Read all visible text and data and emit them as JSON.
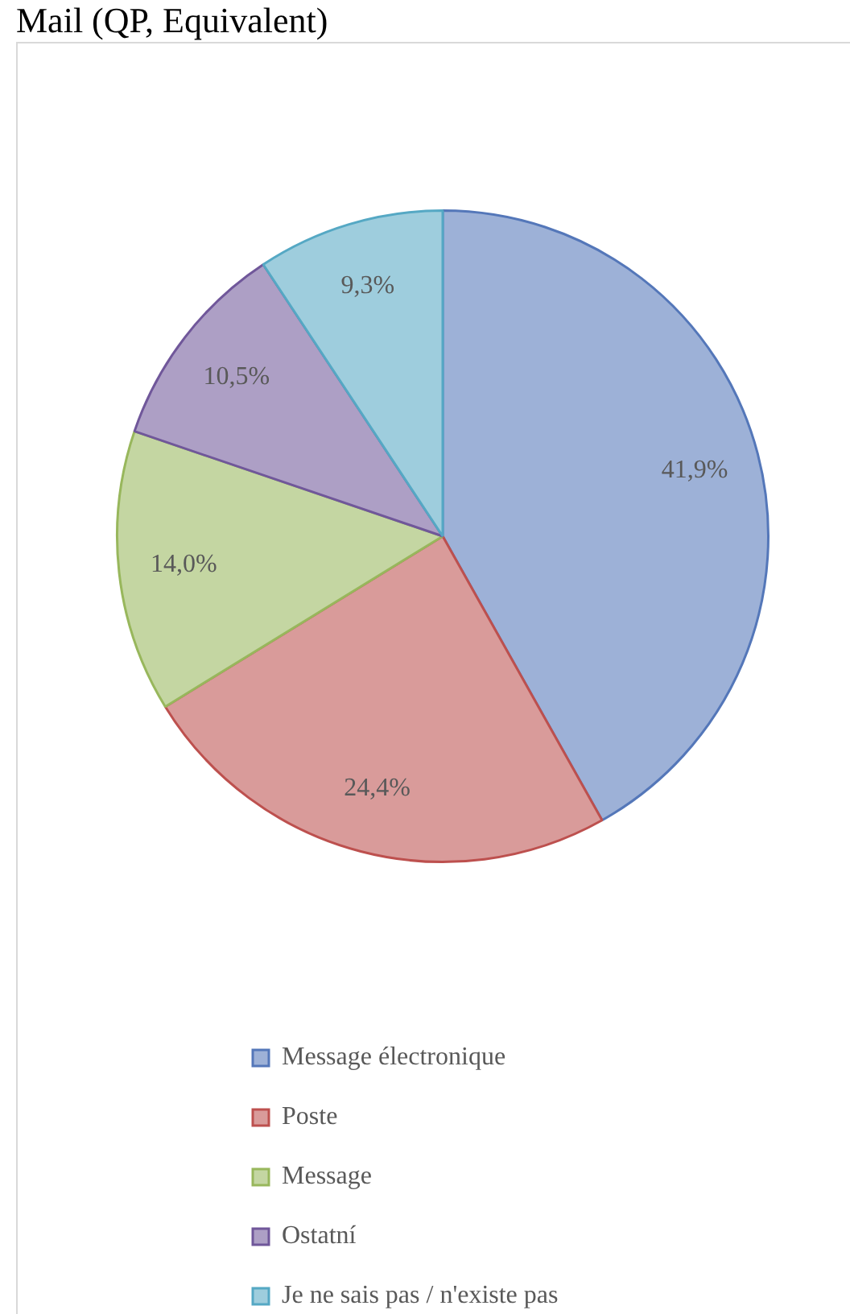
{
  "chart_data": {
    "type": "pie",
    "title": "Mail (QP, Equivalent)",
    "categories": [
      "Message électronique",
      "Poste",
      "Message",
      "Ostatní",
      "Je ne sais pas / n'existe pas"
    ],
    "values": [
      41.9,
      24.4,
      14.0,
      10.5,
      9.3
    ],
    "colors": [
      "#9db1d7",
      "#d99b9a",
      "#c4d6a2",
      "#ad9fc5",
      "#9ecddd"
    ],
    "value_labels": [
      "41,9%",
      "24,4%",
      "14,0%",
      "10,5%",
      "9,3%"
    ],
    "legend": "bottom"
  }
}
